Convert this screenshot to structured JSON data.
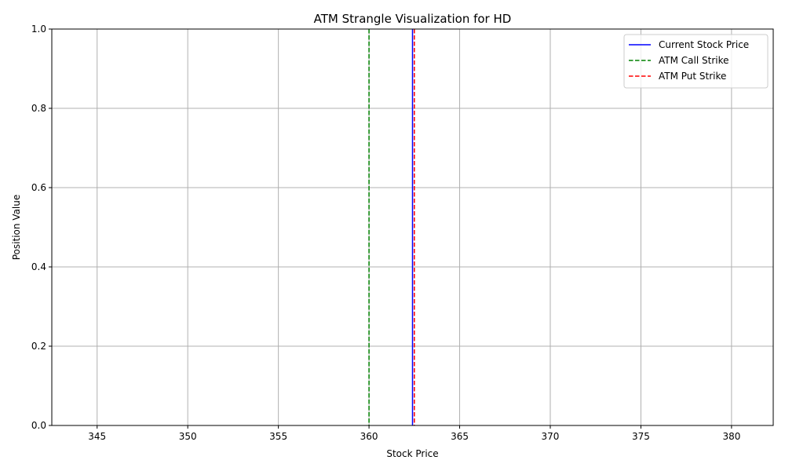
{
  "chart_data": {
    "type": "line",
    "title": "ATM Strangle Visualization for HD",
    "xlabel": "Stock Price",
    "ylabel": "Position Value",
    "xlim": [
      342.5,
      382.3
    ],
    "ylim": [
      0,
      1
    ],
    "x_ticks": [
      345,
      350,
      355,
      360,
      365,
      370,
      375,
      380
    ],
    "y_ticks": [
      0.0,
      0.2,
      0.4,
      0.6,
      0.8,
      1.0
    ],
    "x_tick_labels": [
      "345",
      "350",
      "355",
      "360",
      "365",
      "370",
      "375",
      "380"
    ],
    "y_tick_labels": [
      "0.0",
      "0.2",
      "0.4",
      "0.6",
      "0.8",
      "1.0"
    ],
    "grid": true,
    "legend_position": "top-right",
    "series": [
      {
        "name": "Current Stock Price",
        "x": 362.4,
        "color": "#0000ff",
        "style": "solid"
      },
      {
        "name": "ATM Call Strike",
        "x": 360.0,
        "color": "#008000",
        "style": "dashed"
      },
      {
        "name": "ATM Put Strike",
        "x": 362.5,
        "color": "#ff0000",
        "style": "dashed"
      }
    ]
  }
}
